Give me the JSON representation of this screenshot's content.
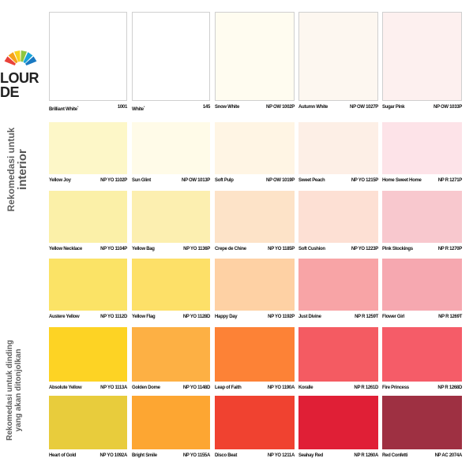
{
  "logo": {
    "line1": "LOUR",
    "line2": "DE"
  },
  "side_labels": {
    "top": {
      "line1": "Rekomedasi untuk",
      "line2": "interior"
    },
    "bottom": {
      "line1": "Rekomedasi untuk dinding",
      "line2": "yang akan ditonjolkan"
    }
  },
  "colors": {
    "fan": [
      "#e9423a",
      "#f6a21a",
      "#f8d21c",
      "#8fc640",
      "#1aa4d9",
      "#1979c2"
    ]
  },
  "rows": [
    [
      {
        "name": "Brilliant White",
        "sup": "*",
        "code": "1001",
        "hex": "#ffffff"
      },
      {
        "name": "White",
        "sup": "*",
        "code": "145",
        "hex": "#ffffff"
      },
      {
        "name": "Snow White",
        "sup": "",
        "code": "NP OW 1002P",
        "hex": "#fffcf0"
      },
      {
        "name": "Autumn White",
        "sup": "",
        "code": "NP OW 1027P",
        "hex": "#fdf7f0"
      },
      {
        "name": "Sugar Pink",
        "sup": "",
        "code": "NP OW 1033P",
        "hex": "#fdf0ef"
      }
    ],
    [
      {
        "name": "Yellow Joy",
        "sup": "",
        "code": "NP YO 1102P",
        "hex": "#fdf7c8"
      },
      {
        "name": "Sun Glint",
        "sup": "",
        "code": "NP OW 1013P",
        "hex": "#fffbe8"
      },
      {
        "name": "Soft Pulp",
        "sup": "",
        "code": "NP OW 1019P",
        "hex": "#fff5e4"
      },
      {
        "name": "Sweet Peach",
        "sup": "",
        "code": "NP YO 1215P",
        "hex": "#fdefe6"
      },
      {
        "name": "Home Sweet Home",
        "sup": "",
        "code": "NP R 1271P",
        "hex": "#fde3e8"
      }
    ],
    [
      {
        "name": "Yellow Necklace",
        "sup": "",
        "code": "NP YO 1104P",
        "hex": "#fbf0a8"
      },
      {
        "name": "Yellow Bag",
        "sup": "",
        "code": "NP YO 1136P",
        "hex": "#fcefb0"
      },
      {
        "name": "Crepe de Chine",
        "sup": "",
        "code": "NP YO 1185P",
        "hex": "#fde3c8"
      },
      {
        "name": "Soft Cushion",
        "sup": "",
        "code": "NP YO 1223P",
        "hex": "#fde0d4"
      },
      {
        "name": "Pink Stockings",
        "sup": "",
        "code": "NP R 1270P",
        "hex": "#f8c8ce"
      }
    ],
    [
      {
        "name": "Austere Yellow",
        "sup": "",
        "code": "NP YO 1112D",
        "hex": "#fbe366"
      },
      {
        "name": "Yellow Flag",
        "sup": "",
        "code": "NP YO 1128D",
        "hex": "#fde068"
      },
      {
        "name": "Happy Day",
        "sup": "",
        "code": "NP YO 1192P",
        "hex": "#fed1a4"
      },
      {
        "name": "Just Divine",
        "sup": "",
        "code": "NP R 1259T",
        "hex": "#f8a4a6"
      },
      {
        "name": "Flower Girl",
        "sup": "",
        "code": "NP R 1269T",
        "hex": "#f6a8b0"
      }
    ],
    [
      {
        "name": "Absolute Yellow",
        "sup": "",
        "code": "NP YO 1113A",
        "hex": "#fdd324"
      },
      {
        "name": "Golden Dome",
        "sup": "",
        "code": "NP YO 1148D",
        "hex": "#fdb044"
      },
      {
        "name": "Leap of Faith",
        "sup": "",
        "code": "NP YO 1190A",
        "hex": "#fd8236"
      },
      {
        "name": "Koralle",
        "sup": "",
        "code": "NP R 1261D",
        "hex": "#f45b62"
      },
      {
        "name": "Fire Princess",
        "sup": "",
        "code": "NP R 1268D",
        "hex": "#f55c68"
      }
    ],
    [
      {
        "name": "Heart of Gold",
        "sup": "",
        "code": "NP YO 1092A",
        "hex": "#e8cc3c"
      },
      {
        "name": "Bright Smile",
        "sup": "",
        "code": "NP YO 1155A",
        "hex": "#fda632"
      },
      {
        "name": "Disco Beat",
        "sup": "",
        "code": "NP YO 1211A",
        "hex": "#f04230"
      },
      {
        "name": "Seahay Red",
        "sup": "",
        "code": "NP R 1260A",
        "hex": "#e01f36"
      },
      {
        "name": "Red Confetti",
        "sup": "",
        "code": "NP AC 2074A",
        "hex": "#9e3042"
      }
    ]
  ]
}
